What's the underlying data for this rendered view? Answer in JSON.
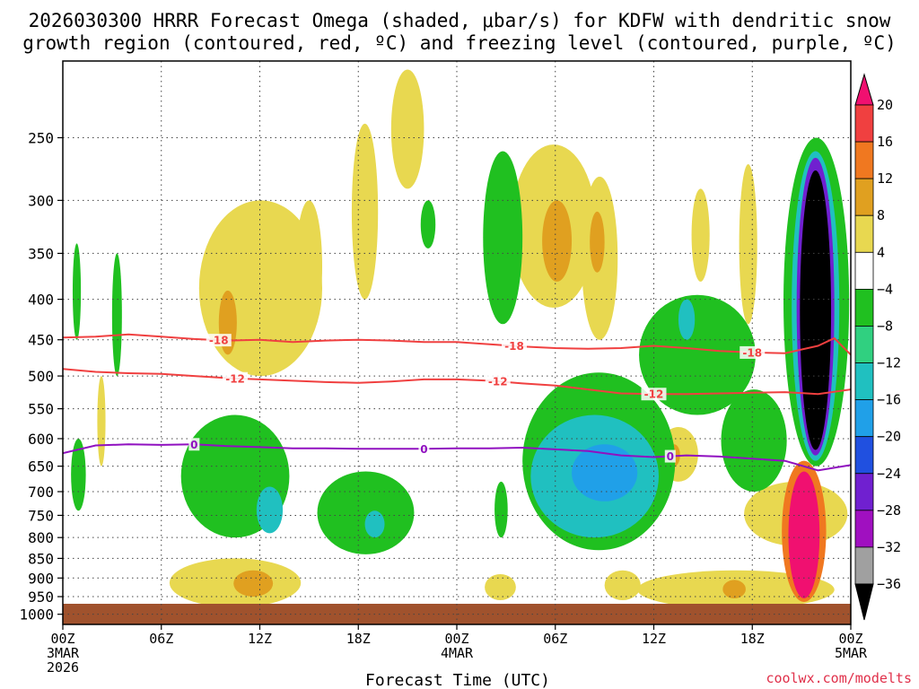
{
  "title_line1": "2026030300 HRRR Forecast Omega (shaded, μbar/s) for KDFW with dendritic snow",
  "title_line2": "growth region (contoured, red, ºC) and freezing level (contoured, purple, ºC)",
  "xlabel": "Forecast Time (UTC)",
  "credit": "coolwx.com/modelts",
  "chart_data": {
    "type": "heatmap",
    "title": "2026030300 HRRR Forecast Omega (shaded, μbar/s) for KDFW with dendritic snow growth region (contoured, red, ºC) and freezing level (contoured, purple, ºC)",
    "xlabel": "Forecast Time (UTC)",
    "ylabel": "",
    "x_range_hours": [
      0,
      48
    ],
    "y_range_hPa": [
      200,
      1030
    ],
    "y_ticks": [
      250,
      300,
      350,
      400,
      450,
      500,
      550,
      600,
      650,
      700,
      750,
      800,
      850,
      900,
      950,
      1000
    ],
    "x_ticks": [
      {
        "hour": 0,
        "lines": [
          "00Z",
          "3MAR",
          "2026"
        ]
      },
      {
        "hour": 6,
        "lines": [
          "06Z"
        ]
      },
      {
        "hour": 12,
        "lines": [
          "12Z"
        ]
      },
      {
        "hour": 18,
        "lines": [
          "18Z"
        ]
      },
      {
        "hour": 24,
        "lines": [
          "00Z",
          "4MAR"
        ]
      },
      {
        "hour": 30,
        "lines": [
          "06Z"
        ]
      },
      {
        "hour": 36,
        "lines": [
          "12Z"
        ]
      },
      {
        "hour": 42,
        "lines": [
          "18Z"
        ]
      },
      {
        "hour": 48,
        "lines": [
          "00Z",
          "5MAR"
        ]
      }
    ],
    "colorbar": {
      "labels": [
        "20",
        "16",
        "12",
        "8",
        "4",
        "−4",
        "−8",
        "−12",
        "−16",
        "−20",
        "−24",
        "−28",
        "−32",
        "−36"
      ],
      "colors": [
        "#f01070",
        "#f04040",
        "#f07820",
        "#e0a020",
        "#e8d850",
        "#ffffff",
        "#20c020",
        "#30d080",
        "#20c0c0",
        "#20a0e8",
        "#2050e0",
        "#7020d0",
        "#a010c0",
        "#a0a0a0",
        "#000000"
      ]
    },
    "contours": [
      {
        "label": "-18",
        "color": "#f04040",
        "points": [
          [
            0,
            447
          ],
          [
            2,
            446
          ],
          [
            4,
            443
          ],
          [
            6,
            446
          ],
          [
            8,
            449
          ],
          [
            10,
            451
          ],
          [
            12,
            450
          ],
          [
            14,
            453
          ],
          [
            16,
            451
          ],
          [
            18,
            450
          ],
          [
            20,
            451
          ],
          [
            22,
            453
          ],
          [
            24,
            453
          ],
          [
            26,
            456
          ],
          [
            28,
            459
          ],
          [
            30,
            461
          ],
          [
            32,
            462
          ],
          [
            34,
            461
          ],
          [
            36,
            458
          ],
          [
            38,
            461
          ],
          [
            40,
            465
          ],
          [
            42,
            467
          ],
          [
            44,
            468
          ],
          [
            46,
            458
          ],
          [
            47,
            448
          ],
          [
            48,
            470
          ]
        ],
        "label_hours": [
          9.5,
          27.5,
          42
        ]
      },
      {
        "label": "-12",
        "color": "#f04040",
        "points": [
          [
            0,
            490
          ],
          [
            2,
            494
          ],
          [
            4,
            496
          ],
          [
            6,
            497
          ],
          [
            8,
            500
          ],
          [
            10,
            503
          ],
          [
            12,
            505
          ],
          [
            14,
            507
          ],
          [
            16,
            509
          ],
          [
            18,
            510
          ],
          [
            20,
            508
          ],
          [
            22,
            505
          ],
          [
            24,
            505
          ],
          [
            26,
            507
          ],
          [
            28,
            511
          ],
          [
            30,
            514
          ],
          [
            32,
            520
          ],
          [
            34,
            526
          ],
          [
            36,
            527
          ],
          [
            38,
            527
          ],
          [
            40,
            526
          ],
          [
            42,
            525
          ],
          [
            44,
            524
          ],
          [
            46,
            527
          ],
          [
            48,
            520
          ]
        ],
        "label_hours": [
          10.5,
          26.5,
          36
        ]
      },
      {
        "label": "0",
        "color": "#9010c0",
        "points": [
          [
            0,
            626
          ],
          [
            2,
            612
          ],
          [
            4,
            610
          ],
          [
            6,
            611
          ],
          [
            8,
            610
          ],
          [
            10,
            613
          ],
          [
            12,
            615
          ],
          [
            14,
            617
          ],
          [
            16,
            617
          ],
          [
            18,
            618
          ],
          [
            20,
            618
          ],
          [
            22,
            618
          ],
          [
            24,
            617
          ],
          [
            26,
            617
          ],
          [
            28,
            616
          ],
          [
            30,
            619
          ],
          [
            32,
            622
          ],
          [
            34,
            630
          ],
          [
            36,
            633
          ],
          [
            38,
            630
          ],
          [
            40,
            632
          ],
          [
            42,
            636
          ],
          [
            44,
            640
          ],
          [
            46,
            658
          ],
          [
            48,
            648
          ]
        ],
        "label_hours": [
          8,
          22,
          37
        ]
      }
    ],
    "regions": [
      {
        "sign": "up",
        "level": 4,
        "x": [
          20,
          22
        ],
        "y": [
          205,
          290
        ]
      },
      {
        "sign": "up",
        "level": 4,
        "x": [
          17.6,
          19.2
        ],
        "y": [
          240,
          400
        ]
      },
      {
        "sign": "up",
        "level": 4,
        "x": [
          27.3,
          32.5
        ],
        "y": [
          255,
          410
        ]
      },
      {
        "sign": "up",
        "level": 8,
        "x": [
          29.2,
          31.0
        ],
        "y": [
          300,
          380
        ]
      },
      {
        "sign": "up",
        "level": 4,
        "x": [
          31.6,
          33.8
        ],
        "y": [
          280,
          450
        ]
      },
      {
        "sign": "up",
        "level": 8,
        "x": [
          32.1,
          33.0
        ],
        "y": [
          310,
          370
        ]
      },
      {
        "sign": "up",
        "level": 4,
        "x": [
          8.3,
          15.8
        ],
        "y": [
          300,
          500
        ]
      },
      {
        "sign": "up",
        "level": 8,
        "x": [
          9.5,
          10.6
        ],
        "y": [
          390,
          470
        ]
      },
      {
        "sign": "up",
        "level": 4,
        "x": [
          14.2,
          15.8
        ],
        "y": [
          300,
          440
        ]
      },
      {
        "sign": "up",
        "level": 4,
        "x": [
          41.2,
          42.3
        ],
        "y": [
          270,
          430
        ]
      },
      {
        "sign": "up",
        "level": 4,
        "x": [
          38.3,
          39.4
        ],
        "y": [
          290,
          380
        ]
      },
      {
        "sign": "up",
        "level": 4,
        "x": [
          2.1,
          2.6
        ],
        "y": [
          500,
          650
        ]
      },
      {
        "sign": "up",
        "level": 4,
        "x": [
          36.3,
          38.7
        ],
        "y": [
          580,
          680
        ]
      },
      {
        "sign": "up",
        "level": 8,
        "x": [
          36.9,
          37.6
        ],
        "y": [
          610,
          650
        ]
      },
      {
        "sign": "up",
        "level": 4,
        "x": [
          6.5,
          14.5
        ],
        "y": [
          850,
          980
        ]
      },
      {
        "sign": "up",
        "level": 8,
        "x": [
          10.4,
          12.8
        ],
        "y": [
          880,
          950
        ]
      },
      {
        "sign": "up",
        "level": 4,
        "x": [
          35.0,
          47.0
        ],
        "y": [
          880,
          985
        ]
      },
      {
        "sign": "up",
        "level": 8,
        "x": [
          40.2,
          41.6
        ],
        "y": [
          905,
          955
        ]
      },
      {
        "sign": "up",
        "level": 4,
        "x": [
          25.7,
          27.6
        ],
        "y": [
          890,
          960
        ]
      },
      {
        "sign": "up",
        "level": 4,
        "x": [
          33.0,
          35.2
        ],
        "y": [
          880,
          960
        ]
      },
      {
        "sign": "up",
        "level": 4,
        "x": [
          41.5,
          47.8
        ],
        "y": [
          680,
          820
        ]
      },
      {
        "sign": "up",
        "level": 12,
        "x": [
          43.8,
          46.5
        ],
        "y": [
          640,
          965
        ]
      },
      {
        "sign": "up",
        "level": 20,
        "x": [
          44.2,
          46.1
        ],
        "y": [
          660,
          955
        ]
      },
      {
        "sign": "down",
        "level": -4,
        "x": [
          25.6,
          28.0
        ],
        "y": [
          260,
          430
        ]
      },
      {
        "sign": "down",
        "level": -4,
        "x": [
          21.8,
          22.7
        ],
        "y": [
          300,
          345
        ]
      },
      {
        "sign": "down",
        "level": -4,
        "x": [
          7.2,
          13.8
        ],
        "y": [
          560,
          800
        ]
      },
      {
        "sign": "down",
        "level": -12,
        "x": [
          11.8,
          13.4
        ],
        "y": [
          690,
          790
        ]
      },
      {
        "sign": "down",
        "level": -4,
        "x": [
          15.5,
          21.4
        ],
        "y": [
          660,
          840
        ]
      },
      {
        "sign": "down",
        "level": -12,
        "x": [
          18.4,
          19.6
        ],
        "y": [
          740,
          800
        ]
      },
      {
        "sign": "down",
        "level": -4,
        "x": [
          28.0,
          37.3
        ],
        "y": [
          495,
          830
        ]
      },
      {
        "sign": "down",
        "level": -12,
        "x": [
          28.5,
          36.3
        ],
        "y": [
          560,
          800
        ]
      },
      {
        "sign": "down",
        "level": -16,
        "x": [
          31.0,
          35.0
        ],
        "y": [
          610,
          720
        ]
      },
      {
        "sign": "down",
        "level": -4,
        "x": [
          35.1,
          42.2
        ],
        "y": [
          395,
          560
        ]
      },
      {
        "sign": "down",
        "level": -12,
        "x": [
          37.5,
          38.5
        ],
        "y": [
          400,
          450
        ]
      },
      {
        "sign": "down",
        "level": -4,
        "x": [
          40.1,
          44.1
        ],
        "y": [
          520,
          700
        ]
      },
      {
        "sign": "down",
        "level": -4,
        "x": [
          43.9,
          47.9
        ],
        "y": [
          250,
          650
        ]
      },
      {
        "sign": "down",
        "level": -12,
        "x": [
          44.4,
          47.3
        ],
        "y": [
          260,
          640
        ]
      },
      {
        "sign": "down",
        "level": -24,
        "x": [
          44.7,
          47.0
        ],
        "y": [
          265,
          630
        ]
      },
      {
        "sign": "down",
        "level": -36,
        "x": [
          44.9,
          46.8
        ],
        "y": [
          275,
          620
        ]
      },
      {
        "sign": "down",
        "level": -4,
        "x": [
          3.0,
          3.6
        ],
        "y": [
          350,
          500
        ]
      },
      {
        "sign": "down",
        "level": -4,
        "x": [
          0.6,
          1.1
        ],
        "y": [
          340,
          450
        ]
      },
      {
        "sign": "down",
        "level": -4,
        "x": [
          0.5,
          1.4
        ],
        "y": [
          600,
          740
        ]
      },
      {
        "sign": "down",
        "level": -4,
        "x": [
          26.3,
          27.1
        ],
        "y": [
          680,
          800
        ]
      }
    ]
  }
}
